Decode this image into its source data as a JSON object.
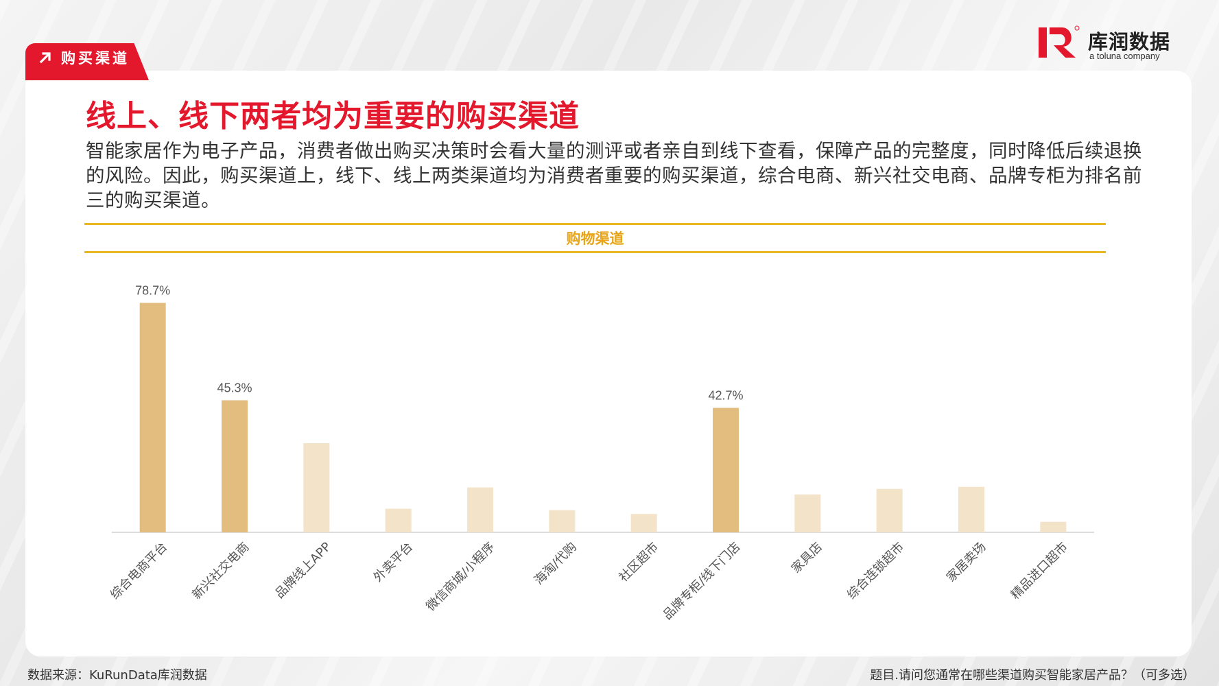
{
  "section_tag": "购买渠道",
  "brand": {
    "name": "库润数据",
    "sub": "a toluna company"
  },
  "title": "线上、线下两者均为重要的购买渠道",
  "description": "智能家居作为电子产品，消费者做出购买决策时会看大量的测评或者亲自到线下查看，保障产品的完整度，同时降低后续退换的风险。因此，购买渠道上，线下、线上两类渠道均为消费者重要的购买渠道，综合电商、新兴社交电商、品牌专柜为排名前三的购买渠道。",
  "chart_header": "购物渠道",
  "chart_data": {
    "type": "bar",
    "title": "购物渠道",
    "categories": [
      "综合电商平台",
      "新兴社交电商",
      "品牌线上APP",
      "外卖平台",
      "微信商城/小程序",
      "海淘/代购",
      "社区超市",
      "品牌专柜/线下门店",
      "家具店",
      "综合连锁超市",
      "家居卖场",
      "精品进口超市"
    ],
    "values": [
      78.7,
      45.3,
      30.6,
      8.1,
      15.4,
      7.6,
      6.3,
      42.7,
      13.0,
      14.9,
      15.6,
      3.6
    ],
    "data_labels": [
      "78.7%",
      "45.3%",
      "",
      "",
      "",
      "",
      "",
      "42.7%",
      "",
      "",
      "",
      ""
    ],
    "highlighted": [
      true,
      true,
      false,
      false,
      false,
      false,
      false,
      true,
      false,
      false,
      false,
      false
    ],
    "ylim": [
      0,
      80
    ],
    "grid": false,
    "colors": {
      "highlight": "#e3bd80",
      "normal": "#f3e3c8",
      "axis": "#d0d0d0",
      "label": "#555555"
    }
  },
  "footer": {
    "source": "数据来源：KuRunData库润数据",
    "question": "题目.请问您通常在哪些渠道购买智能家居产品？（可多选）"
  },
  "colors": {
    "accent_red": "#e3182d",
    "accent_gold": "#e8b820"
  }
}
